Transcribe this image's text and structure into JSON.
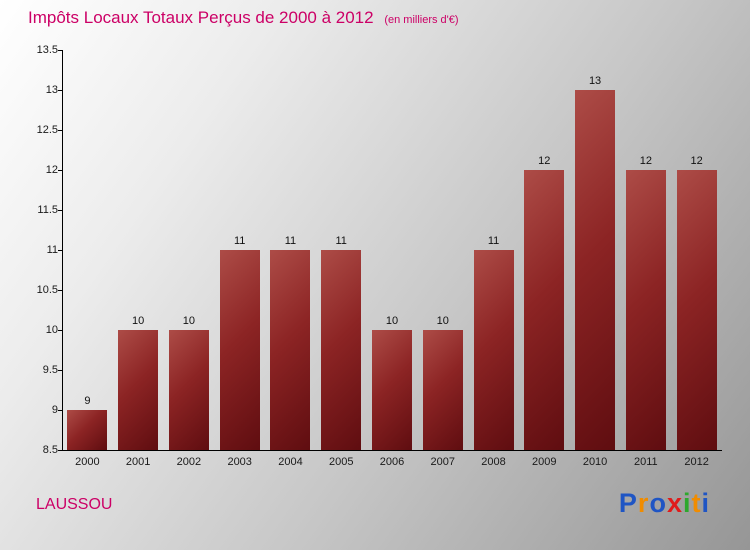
{
  "header": {
    "title": "Impôts Locaux Totaux Perçus de 2000 à 2012",
    "subtitle": "(en milliers d'€)"
  },
  "footer": {
    "location": "LAUSSOU",
    "brand_name": "Proxiti",
    "brand_letters": [
      {
        "char": "P",
        "color": "#1f55c4"
      },
      {
        "char": "r",
        "color": "#f08c00"
      },
      {
        "char": "o",
        "color": "#1f55c4"
      },
      {
        "char": "x",
        "color": "#e01b1b"
      },
      {
        "char": "i",
        "color": "#2da82d"
      },
      {
        "char": "t",
        "color": "#f08c00"
      },
      {
        "char": "i",
        "color": "#1f55c4"
      }
    ]
  },
  "chart_data": {
    "type": "bar",
    "title": "Impôts Locaux Totaux Perçus de 2000 à 2012 (en milliers d'€)",
    "categories": [
      "2000",
      "2001",
      "2002",
      "2003",
      "2004",
      "2005",
      "2006",
      "2007",
      "2008",
      "2009",
      "2010",
      "2011",
      "2012"
    ],
    "values": [
      9,
      10,
      10,
      11,
      11,
      11,
      10,
      10,
      11,
      12,
      13,
      12,
      12
    ],
    "xlabel": "",
    "ylabel": "",
    "ylim": [
      8.5,
      13.5
    ],
    "yticks": [
      8.5,
      9,
      9.5,
      10,
      10.5,
      11,
      11.5,
      12,
      12.5,
      13,
      13.5
    ],
    "grid": false,
    "legend": "none",
    "bar_color_top": "#ad4c47",
    "bar_color_bottom": "#5f0d10",
    "accent_color": "#cc0066"
  }
}
